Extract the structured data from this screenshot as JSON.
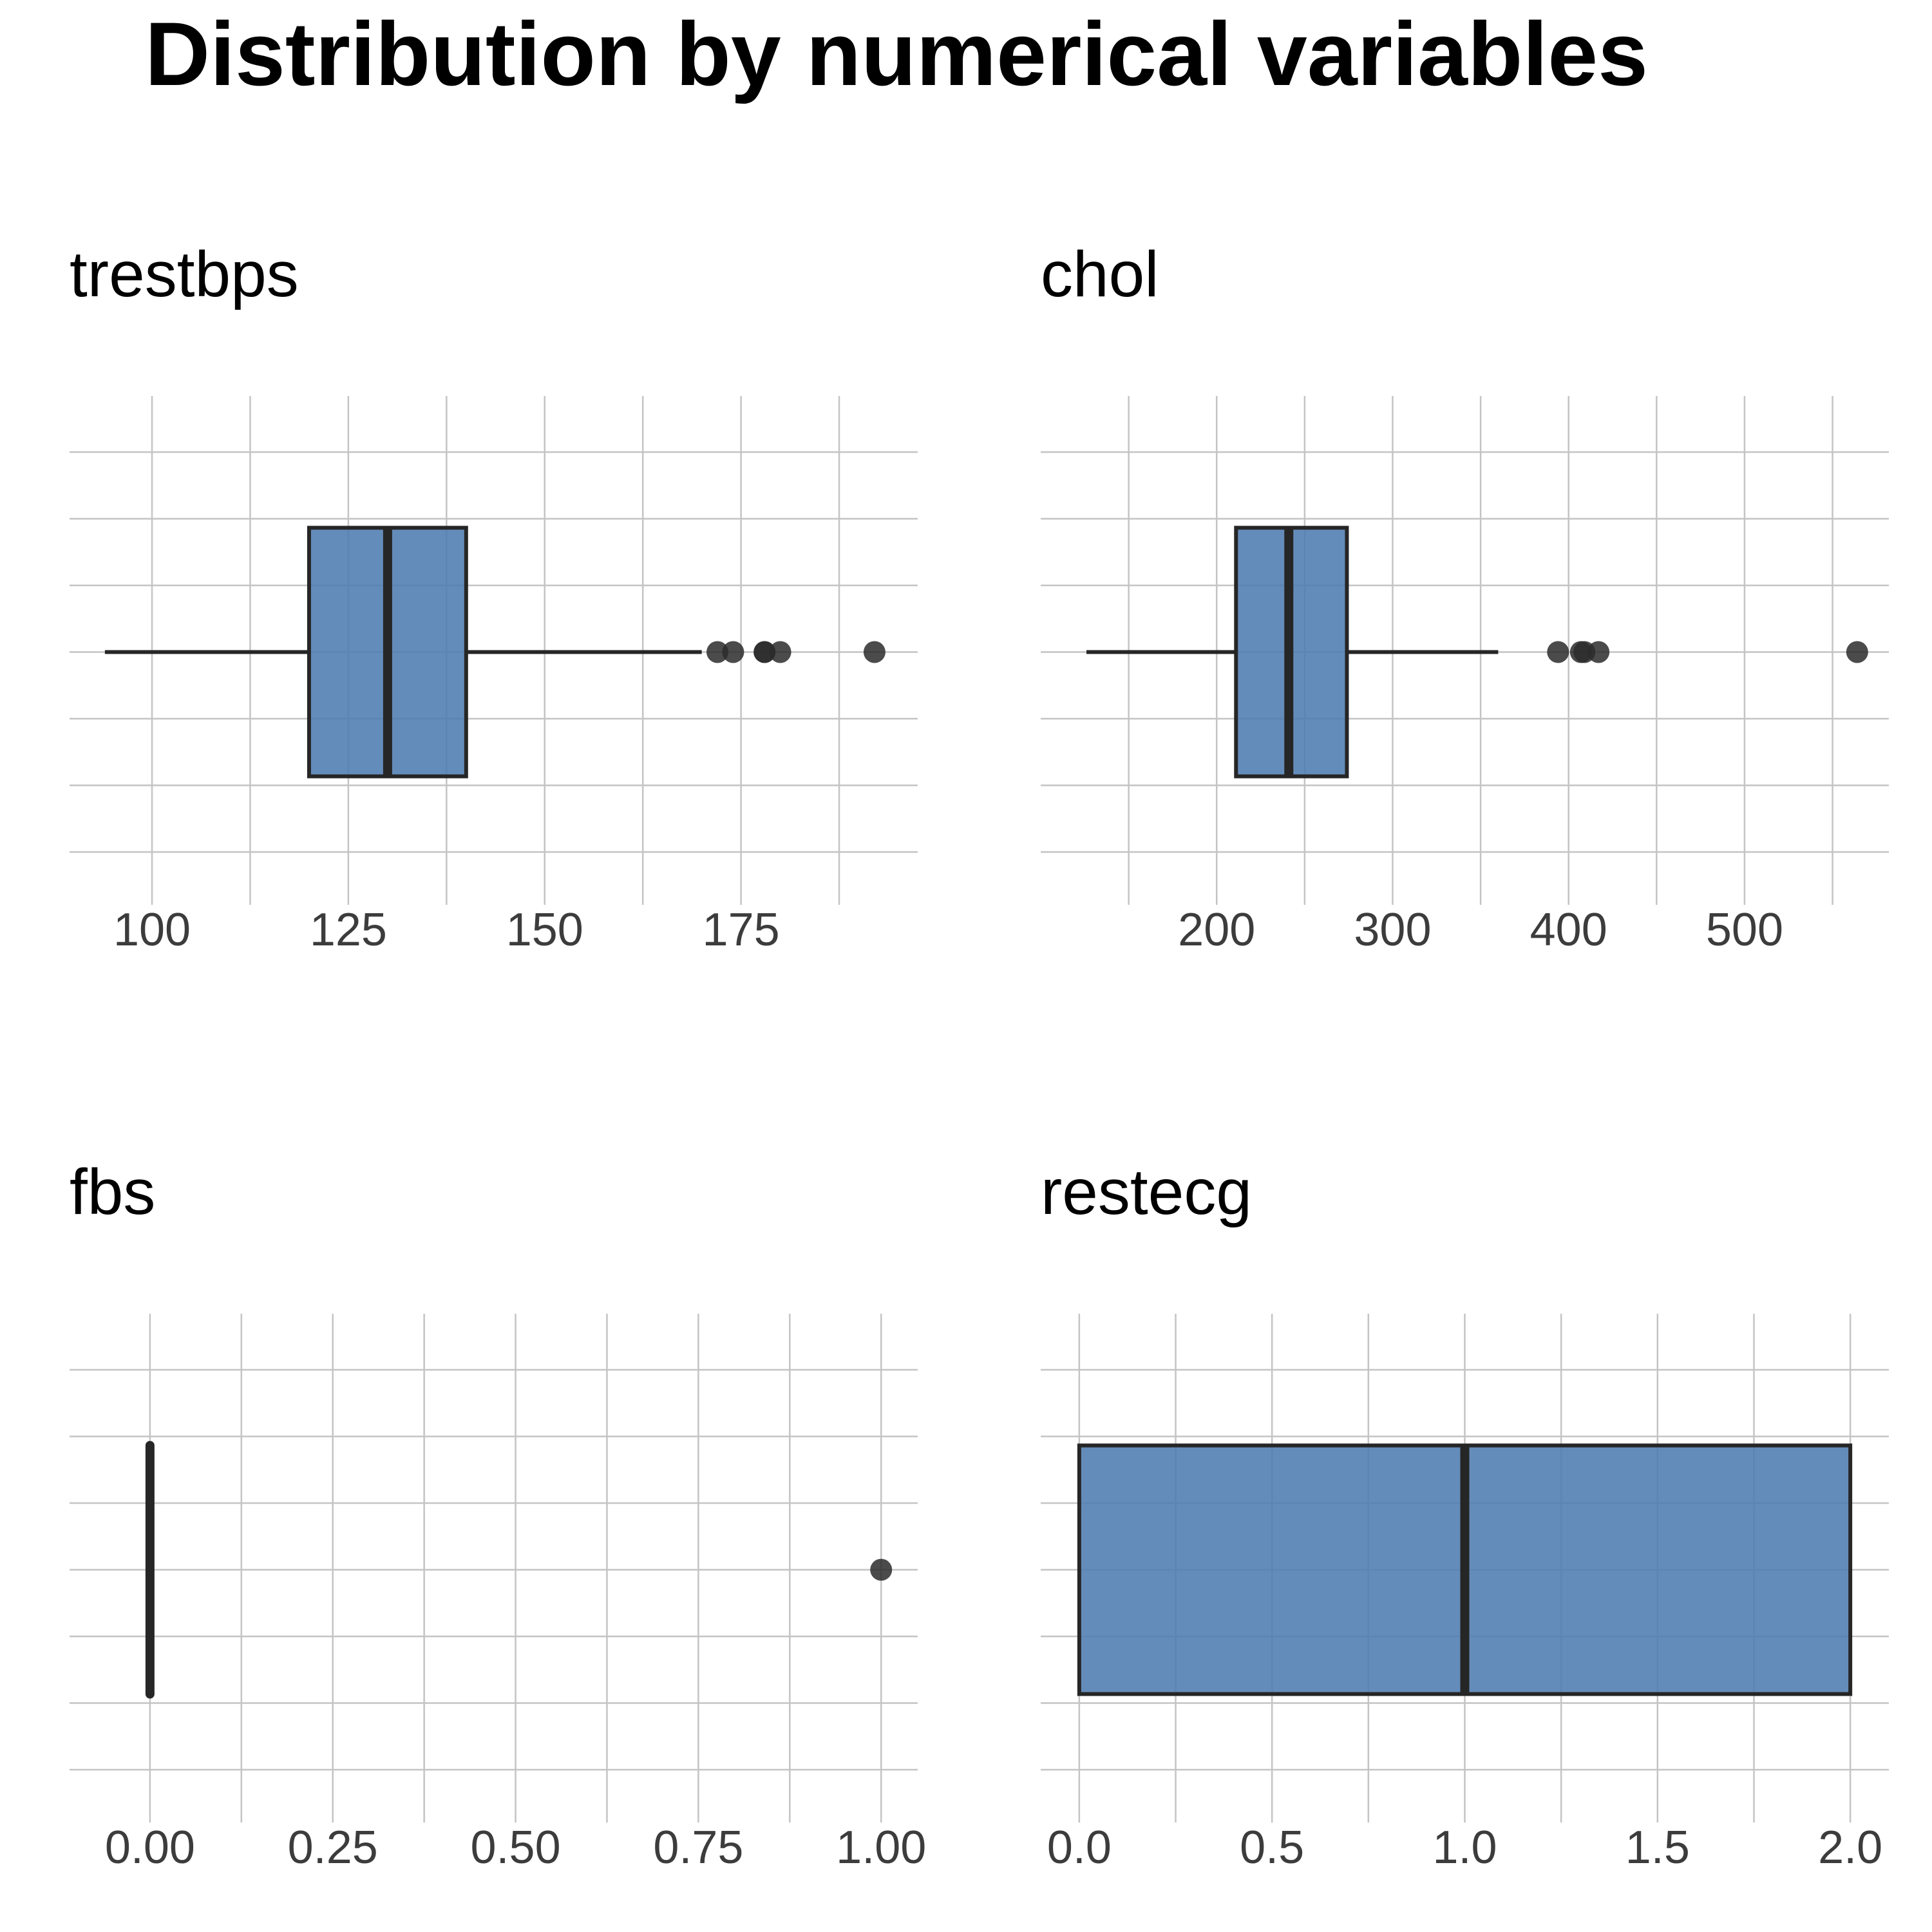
{
  "title": "Distribution by numerical variables",
  "colors": {
    "box_fill": "#4f7cb0",
    "box_stroke": "#262626",
    "grid": "#c4c4c4",
    "outlier": "#2b2b2b"
  },
  "chart_data": [
    {
      "type": "boxplot",
      "title": "trestbps",
      "orientation": "horizontal",
      "xlim": [
        89.5,
        197.5
      ],
      "ticks": [
        100,
        125,
        150,
        175
      ],
      "tick_labels": [
        "100",
        "125",
        "150",
        "175"
      ],
      "minor_ticks": [
        112.5,
        137.5,
        162.5,
        187.5
      ],
      "whisker_low": 94,
      "q1": 120,
      "median": 130,
      "q3": 140,
      "whisker_high": 170,
      "outliers": [
        172,
        174,
        178,
        178,
        180,
        192
      ],
      "grid": true
    },
    {
      "type": "boxplot",
      "title": "chol",
      "orientation": "horizontal",
      "xlim": [
        100,
        582
      ],
      "ticks": [
        200,
        300,
        400,
        500
      ],
      "tick_labels": [
        "200",
        "300",
        "400",
        "500"
      ],
      "minor_ticks": [
        150,
        250,
        350,
        450,
        550
      ],
      "whisker_low": 126,
      "q1": 211,
      "median": 241,
      "q3": 274,
      "whisker_high": 360,
      "outliers": [
        394,
        407,
        409,
        417,
        564
      ],
      "grid": true
    },
    {
      "type": "boxplot",
      "title": "fbs",
      "orientation": "horizontal",
      "xlim": [
        -0.11,
        1.05
      ],
      "ticks": [
        0,
        0.25,
        0.5,
        0.75,
        1
      ],
      "tick_labels": [
        "0.00",
        "0.25",
        "0.50",
        "0.75",
        "1.00"
      ],
      "minor_ticks": [
        0.125,
        0.375,
        0.625,
        0.875
      ],
      "whisker_low": 0,
      "q1": 0,
      "median": 0,
      "q3": 0,
      "whisker_high": 0,
      "outliers": [
        1
      ],
      "grid": true
    },
    {
      "type": "boxplot",
      "title": "restecg",
      "orientation": "horizontal",
      "xlim": [
        -0.1,
        2.1
      ],
      "ticks": [
        0,
        0.5,
        1,
        1.5,
        2
      ],
      "tick_labels": [
        "0.0",
        "0.5",
        "1.0",
        "1.5",
        "2.0"
      ],
      "minor_ticks": [
        0.25,
        0.75,
        1.25,
        1.75
      ],
      "whisker_low": 0,
      "q1": 0,
      "median": 1,
      "q3": 2,
      "whisker_high": 2,
      "outliers": [],
      "grid": true
    }
  ]
}
